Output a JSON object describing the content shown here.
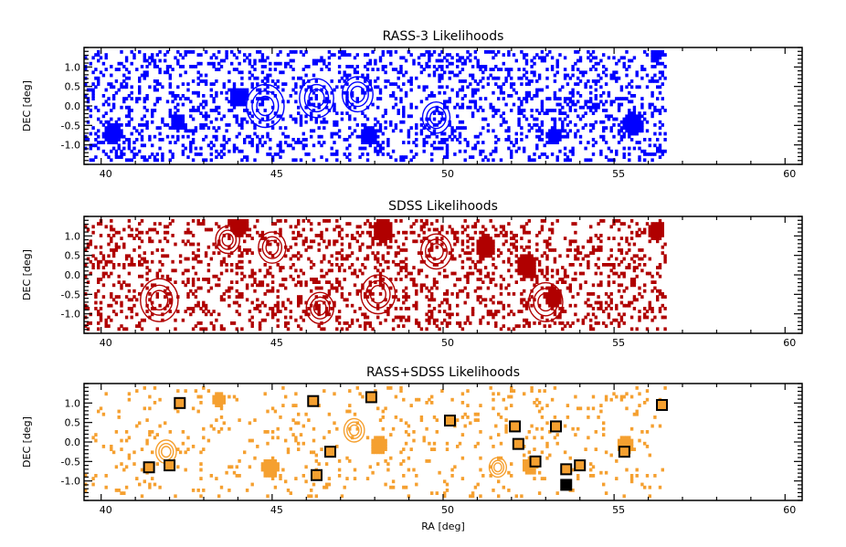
{
  "chart_data": [
    {
      "type": "heatmap",
      "title": "RASS-3 Likelihoods",
      "xlabel": "",
      "ylabel": "DEC [deg]",
      "xlim": [
        39.5,
        60.5
      ],
      "ylim": [
        -1.5,
        1.5
      ],
      "xticks": [
        "40",
        "45",
        "50",
        "55",
        "60"
      ],
      "yticks": [
        "1.0",
        "0.5",
        "0.0",
        "-0.5",
        "-1.0"
      ],
      "color": "#0000ff",
      "data_extent_ra": [
        39.5,
        56.5
      ],
      "seed": 7,
      "density": 0.42,
      "blobs": [
        {
          "ra": 40.3,
          "dec": -0.75,
          "r": 0.28
        },
        {
          "ra": 42.2,
          "dec": -0.45,
          "r": 0.22
        },
        {
          "ra": 44.0,
          "dec": 0.2,
          "r": 0.25
        },
        {
          "ra": 47.8,
          "dec": -0.8,
          "r": 0.25
        },
        {
          "ra": 53.2,
          "dec": -0.8,
          "r": 0.22
        },
        {
          "ra": 55.5,
          "dec": -0.5,
          "r": 0.3
        },
        {
          "ra": 56.2,
          "dec": 1.3,
          "r": 0.18
        }
      ],
      "contours": [
        {
          "ra": 44.8,
          "dec": 0.0,
          "r": 0.55
        },
        {
          "ra": 46.3,
          "dec": 0.2,
          "r": 0.5
        },
        {
          "ra": 47.5,
          "dec": 0.3,
          "r": 0.45
        },
        {
          "ra": 49.8,
          "dec": -0.3,
          "r": 0.4
        }
      ]
    },
    {
      "type": "heatmap",
      "title": "SDSS Likelihoods",
      "xlabel": "",
      "ylabel": "DEC [deg]",
      "xlim": [
        39.5,
        60.5
      ],
      "ylim": [
        -1.5,
        1.5
      ],
      "xticks": [
        "40",
        "45",
        "50",
        "55",
        "60"
      ],
      "yticks": [
        "1.0",
        "0.5",
        "0.0",
        "-0.5",
        "-1.0"
      ],
      "color": "#b00000",
      "data_extent_ra": [
        39.5,
        56.5
      ],
      "seed": 19,
      "density": 0.36,
      "blobs": [
        {
          "ra": 44.0,
          "dec": 1.2,
          "r": 0.25
        },
        {
          "ra": 48.2,
          "dec": 1.1,
          "r": 0.3
        },
        {
          "ra": 51.2,
          "dec": 0.7,
          "r": 0.3
        },
        {
          "ra": 52.4,
          "dec": 0.2,
          "r": 0.3
        },
        {
          "ra": 53.2,
          "dec": -0.6,
          "r": 0.25
        },
        {
          "ra": 56.2,
          "dec": 1.1,
          "r": 0.25
        }
      ],
      "contours": [
        {
          "ra": 41.7,
          "dec": -0.65,
          "r": 0.55
        },
        {
          "ra": 43.7,
          "dec": 0.9,
          "r": 0.35
        },
        {
          "ra": 45.0,
          "dec": 0.7,
          "r": 0.4
        },
        {
          "ra": 46.4,
          "dec": -0.85,
          "r": 0.4
        },
        {
          "ra": 48.1,
          "dec": -0.5,
          "r": 0.5
        },
        {
          "ra": 49.8,
          "dec": 0.6,
          "r": 0.45
        },
        {
          "ra": 53.0,
          "dec": -0.7,
          "r": 0.5
        }
      ]
    },
    {
      "type": "heatmap",
      "title": "RASS+SDSS Likelihoods",
      "xlabel": "RA [deg]",
      "ylabel": "DEC [deg]",
      "xlim": [
        39.5,
        60.5
      ],
      "ylim": [
        -1.5,
        1.5
      ],
      "xticks": [
        "40",
        "45",
        "50",
        "55",
        "60"
      ],
      "yticks": [
        "1.0",
        "0.5",
        "0.0",
        "-0.5",
        "-1.0"
      ],
      "color": "#f5a030",
      "data_extent_ra": [
        39.5,
        56.5
      ],
      "seed": 31,
      "density": 0.12,
      "blobs": [
        {
          "ra": 43.4,
          "dec": 1.05,
          "r": 0.2
        },
        {
          "ra": 44.9,
          "dec": -0.7,
          "r": 0.25
        },
        {
          "ra": 48.1,
          "dec": -0.1,
          "r": 0.25
        },
        {
          "ra": 52.5,
          "dec": -0.65,
          "r": 0.22
        },
        {
          "ra": 55.3,
          "dec": -0.1,
          "r": 0.25
        }
      ],
      "contours": [
        {
          "ra": 41.9,
          "dec": -0.25,
          "r": 0.3
        },
        {
          "ra": 47.4,
          "dec": 0.3,
          "r": 0.3
        },
        {
          "ra": 51.6,
          "dec": -0.65,
          "r": 0.25
        }
      ],
      "markers": [
        {
          "ra": 42.3,
          "dec": 1.0
        },
        {
          "ra": 46.2,
          "dec": 1.05
        },
        {
          "ra": 47.9,
          "dec": 1.15
        },
        {
          "ra": 50.2,
          "dec": 0.55
        },
        {
          "ra": 52.1,
          "dec": 0.4
        },
        {
          "ra": 53.3,
          "dec": 0.4
        },
        {
          "ra": 56.4,
          "dec": 0.95
        },
        {
          "ra": 52.2,
          "dec": -0.05
        },
        {
          "ra": 46.7,
          "dec": -0.25
        },
        {
          "ra": 55.3,
          "dec": -0.25
        },
        {
          "ra": 41.4,
          "dec": -0.65
        },
        {
          "ra": 42.0,
          "dec": -0.6
        },
        {
          "ra": 52.7,
          "dec": -0.5
        },
        {
          "ra": 54.0,
          "dec": -0.6
        },
        {
          "ra": 53.6,
          "dec": -0.7
        },
        {
          "ra": 46.3,
          "dec": -0.85
        }
      ],
      "filled_markers": [
        {
          "ra": 53.6,
          "dec": -1.1
        }
      ]
    }
  ]
}
